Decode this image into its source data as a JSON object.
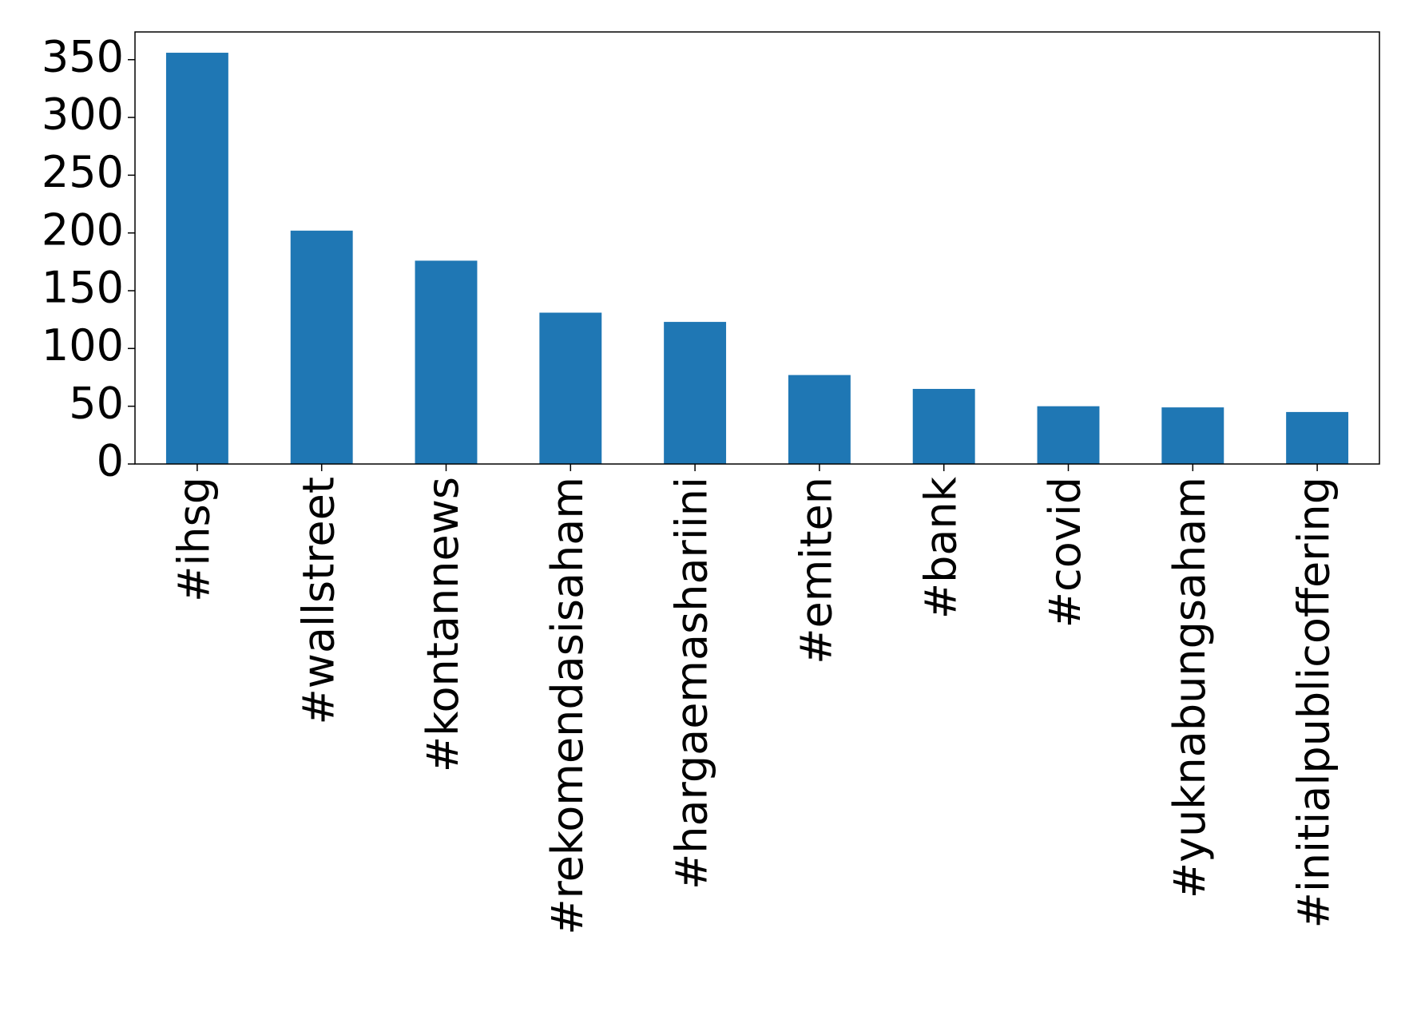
{
  "chart_data": {
    "type": "bar",
    "categories": [
      "#ihsg",
      "#wallstreet",
      "#kontannews",
      "#rekomendasisaham",
      "#hargaemashariini",
      "#emiten",
      "#bank",
      "#covid",
      "#yuknabungsaham",
      "#initialpublicoffering"
    ],
    "values": [
      356,
      202,
      176,
      131,
      123,
      77,
      65,
      50,
      49,
      45
    ],
    "color": "#1f77b4",
    "ylim": [
      0,
      374
    ],
    "yticks": [
      0,
      50,
      100,
      150,
      200,
      250,
      300,
      350
    ],
    "grid": false
  }
}
